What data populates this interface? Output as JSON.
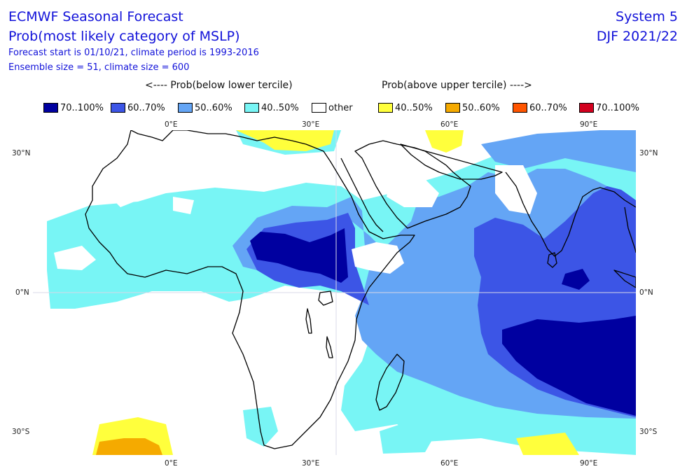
{
  "header": {
    "title": "ECMWF Seasonal Forecast",
    "subtitle": "Prob(most likely category of MSLP)",
    "forecast_line": "Forecast start is 01/10/21, climate period is 1993-2016",
    "ensemble_line": "Ensemble size = 51, climate size = 600",
    "system": "System 5",
    "season": "DJF 2021/22"
  },
  "legend": {
    "below_heading": "<---- Prob(below lower tercile)",
    "above_heading": "Prob(above upper tercile) ---->",
    "items": [
      {
        "label": "70..100%",
        "color": "#0000a0"
      },
      {
        "label": "60..70%",
        "color": "#3c55e6"
      },
      {
        "label": "50..60%",
        "color": "#64a5f5"
      },
      {
        "label": "40..50%",
        "color": "#78f5f5"
      },
      {
        "label": "other",
        "color": "#ffffff"
      },
      {
        "label": "40..50%",
        "color": "#ffff3c"
      },
      {
        "label": "50..60%",
        "color": "#f5aa00"
      },
      {
        "label": "60..70%",
        "color": "#ff5500"
      },
      {
        "label": "70..100%",
        "color": "#d2001e"
      }
    ]
  },
  "map": {
    "lon_labels": [
      "0°E",
      "30°E",
      "60°E",
      "90°E"
    ],
    "lat_labels": [
      "30°N",
      "0°N",
      "30°S"
    ],
    "colors": {
      "c40": "#78f5f5",
      "c50": "#64a5f5",
      "c60": "#3c55e6",
      "c70": "#0000a0",
      "y40": "#ffff3c",
      "o50": "#f5aa00",
      "coast": "#000000",
      "grid": "#d8d8e8"
    }
  }
}
